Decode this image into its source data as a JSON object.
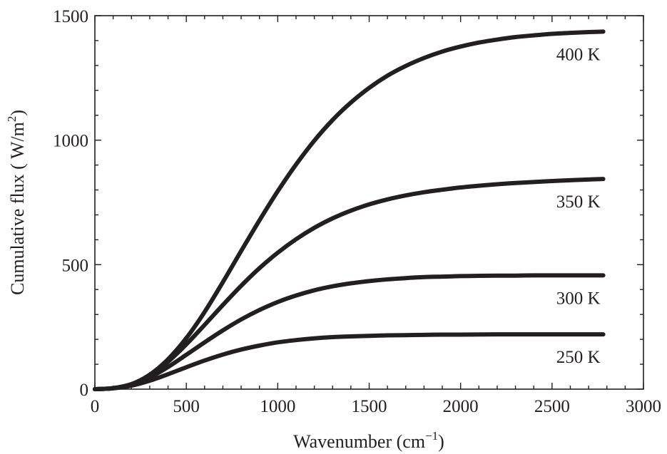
{
  "chart_data": {
    "type": "line",
    "xlabel": "Wavenumber (cm",
    "xlabel_sup": "−1",
    "xlabel_end": ")",
    "ylabel": "Cumulative flux ( W/m",
    "ylabel_sup": "2",
    "ylabel_end": ")",
    "xlim": [
      0,
      3000
    ],
    "ylim": [
      0,
      1500
    ],
    "x_ticks": [
      0,
      500,
      1000,
      1500,
      2000,
      2500,
      3000
    ],
    "y_ticks": [
      0,
      500,
      1000,
      1500
    ],
    "x_tick_labels": [
      "0",
      "500",
      "1000",
      "1500",
      "2000",
      "2500",
      "3000"
    ],
    "y_tick_labels": [
      "0",
      "500",
      "1000",
      "1500"
    ],
    "x_minor_step": 100,
    "y_minor_step": 100,
    "grid": false,
    "line_color": "#231f20",
    "series": [
      {
        "label": "400 K",
        "x": [
          0,
          100,
          200,
          300,
          400,
          500,
          600,
          700,
          800,
          900,
          1000,
          1100,
          1200,
          1300,
          1400,
          1500,
          1600,
          1700,
          1800,
          1900,
          2000,
          2100,
          2200,
          2300,
          2400,
          2500,
          2600,
          2700,
          2780
        ],
        "y": [
          0,
          4,
          20,
          58,
          120,
          205,
          310,
          430,
          555,
          678,
          795,
          902,
          998,
          1081,
          1151,
          1210,
          1259,
          1298,
          1330,
          1356,
          1376,
          1392,
          1404,
          1414,
          1421,
          1427,
          1431,
          1434,
          1436
        ]
      },
      {
        "label": "350 K",
        "x": [
          0,
          100,
          200,
          300,
          400,
          500,
          600,
          700,
          800,
          900,
          1000,
          1100,
          1200,
          1300,
          1400,
          1500,
          1600,
          1700,
          1800,
          1900,
          2000,
          2100,
          2200,
          2300,
          2400,
          2500,
          2600,
          2700,
          2780
        ],
        "y": [
          0,
          4,
          20,
          55,
          110,
          180,
          258,
          338,
          415,
          486,
          548,
          602,
          648,
          686,
          717,
          742,
          762,
          778,
          791,
          801,
          810,
          817,
          823,
          828,
          832,
          836,
          839,
          842,
          844
        ]
      },
      {
        "label": "300 K",
        "x": [
          0,
          100,
          200,
          300,
          400,
          500,
          600,
          700,
          800,
          900,
          1000,
          1100,
          1200,
          1300,
          1400,
          1500,
          1600,
          1700,
          1800,
          1900,
          2000,
          2100,
          2200,
          2300,
          2400,
          2500,
          2600,
          2700,
          2780
        ],
        "y": [
          0,
          4,
          18,
          47,
          89,
          138,
          188,
          236,
          280,
          318,
          350,
          376,
          397,
          413,
          425,
          434,
          441,
          446,
          450,
          452,
          454,
          455,
          456,
          456,
          457,
          457,
          457,
          457,
          457
        ]
      },
      {
        "label": "250 K",
        "x": [
          0,
          100,
          200,
          300,
          400,
          500,
          600,
          700,
          800,
          900,
          1000,
          1100,
          1200,
          1300,
          1400,
          1500,
          1600,
          1700,
          1800,
          1900,
          2000,
          2200,
          2400,
          2600,
          2780
        ],
        "y": [
          0,
          3,
          14,
          34,
          60,
          88,
          115,
          139,
          159,
          175,
          188,
          197,
          204,
          209,
          212,
          214,
          216,
          217,
          218,
          219,
          219,
          220,
          220,
          220,
          220
        ]
      }
    ]
  }
}
